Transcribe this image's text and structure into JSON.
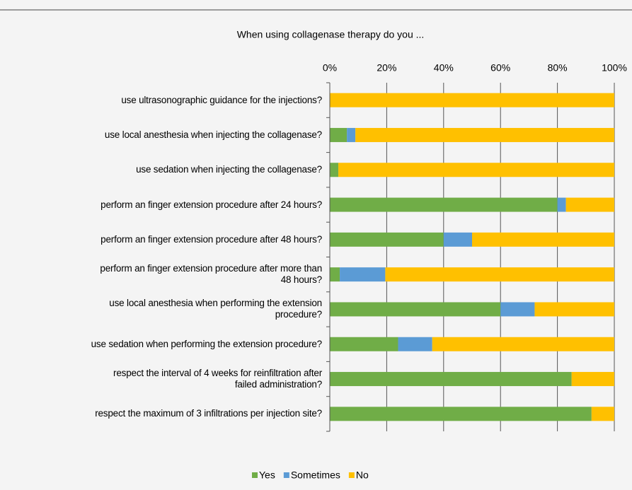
{
  "chart_data": {
    "type": "stacked_barh",
    "title": "When using collagenase therapy do you ...",
    "categories": [
      "use ultrasonographic guidance for the injections?",
      "use local anesthesia when injecting the collagenase?",
      "use sedation when injecting the collagenase?",
      "perform an finger extension procedure after 24 hours?",
      "perform an finger extension procedure after 48 hours?",
      "perform an finger extension procedure after more than\n48 hours?",
      "use local anesthesia when performing the extension\nprocedure?",
      "use sedation when performing the extension procedure?",
      "respect the interval of 4 weeks for reinfiltration after\nfailed administration?",
      "respect the maximum of 3 infiltrations per injection site?"
    ],
    "series": [
      {
        "name": "Yes",
        "color": "#70ad47",
        "values": [
          0,
          6,
          3,
          80,
          40,
          3.5,
          60,
          24,
          85,
          92
        ]
      },
      {
        "name": "Sometimes",
        "color": "#5b9bd5",
        "values": [
          0,
          3,
          0,
          3,
          10,
          16,
          12,
          12,
          0,
          0
        ]
      },
      {
        "name": "No",
        "color": "#ffc000",
        "values": [
          100,
          91,
          97,
          17,
          50,
          80.5,
          28,
          64,
          15,
          8
        ]
      }
    ],
    "xlim": [
      0,
      100
    ],
    "xticks": [
      {
        "value": 0,
        "label": "0%"
      },
      {
        "value": 20,
        "label": "20%"
      },
      {
        "value": 40,
        "label": "40%"
      },
      {
        "value": 60,
        "label": "60%"
      },
      {
        "value": 80,
        "label": "80%"
      },
      {
        "value": 100,
        "label": "100%"
      }
    ],
    "grid": true,
    "legend": "bottom"
  }
}
